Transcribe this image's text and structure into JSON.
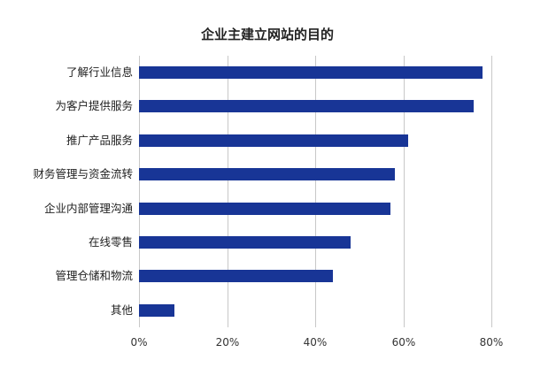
{
  "chart_data": {
    "type": "bar",
    "orientation": "horizontal",
    "title": "企业主建立网站的目的",
    "categories": [
      "了解行业信息",
      "为客户提供服务",
      "推广产品服务",
      "财务管理与资金流转",
      "企业内部管理沟通",
      "在线零售",
      "管理仓储和物流",
      "其他"
    ],
    "values": [
      78,
      76,
      61,
      58,
      57,
      48,
      44,
      8
    ],
    "unit": "%",
    "xlabel": "",
    "ylabel": "",
    "xlim": [
      0,
      80
    ],
    "xticks": [
      "0%",
      "20%",
      "40%",
      "60%",
      "80%"
    ],
    "grid": true,
    "legend": null,
    "bar_color": "#183596"
  }
}
